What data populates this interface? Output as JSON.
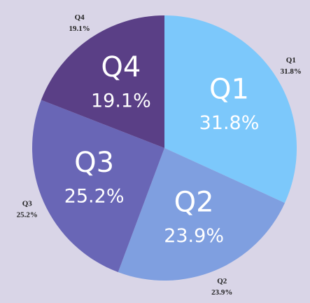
{
  "chart_data": {
    "type": "pie",
    "categories": [
      "Q1",
      "Q2",
      "Q3",
      "Q4"
    ],
    "values": [
      31.8,
      23.9,
      25.2,
      19.1
    ],
    "value_labels": [
      "31.8%",
      "23.9%",
      "25.2%",
      "19.1%"
    ],
    "colors": [
      "#7cc8fb",
      "#7f9fe0",
      "#6966b6",
      "#5a3f86"
    ]
  }
}
